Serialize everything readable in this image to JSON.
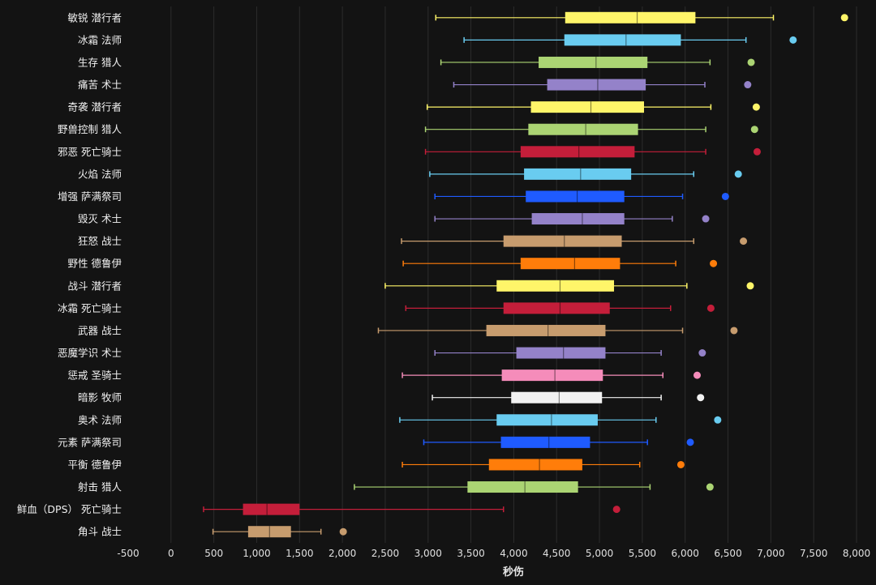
{
  "chart_data": {
    "type": "boxplot",
    "title": "",
    "xlabel": "秒伤",
    "ylabel": "",
    "xlim": [
      -500,
      8000
    ],
    "x_ticks": [
      -500,
      0,
      500,
      1000,
      1500,
      2000,
      2500,
      3000,
      3500,
      4000,
      4500,
      5000,
      5500,
      6000,
      6500,
      7000,
      7500,
      8000
    ],
    "x_tick_labels": [
      "-500",
      "0",
      "500",
      "1,000",
      "1,500",
      "2,000",
      "2,500",
      "3,000",
      "3,500",
      "4,000",
      "4,500",
      "5,000",
      "5,500",
      "6,000",
      "6,500",
      "7,000",
      "7,500",
      "8,000"
    ],
    "grid": true,
    "series": [
      {
        "name": "敏锐 潜行者",
        "color": "#fff569",
        "min": 3090,
        "q1": 4600,
        "median": 5440,
        "q3": 6120,
        "max": 7030,
        "outlier": 7860
      },
      {
        "name": "冰霜 法师",
        "color": "#69ccf0",
        "min": 3420,
        "q1": 4590,
        "median": 5310,
        "q3": 5950,
        "max": 6710,
        "outlier": 7260
      },
      {
        "name": "生存 猎人",
        "color": "#abd473",
        "min": 3150,
        "q1": 4290,
        "median": 4960,
        "q3": 5560,
        "max": 6290,
        "outlier": 6770
      },
      {
        "name": "痛苦 术士",
        "color": "#9482c9",
        "min": 3300,
        "q1": 4390,
        "median": 4980,
        "q3": 5540,
        "max": 6230,
        "outlier": 6730
      },
      {
        "name": "奇袭 潜行者",
        "color": "#fff569",
        "min": 2990,
        "q1": 4200,
        "median": 4900,
        "q3": 5520,
        "max": 6300,
        "outlier": 6830
      },
      {
        "name": "野兽控制 猎人",
        "color": "#abd473",
        "min": 2970,
        "q1": 4170,
        "median": 4840,
        "q3": 5450,
        "max": 6240,
        "outlier": 6810
      },
      {
        "name": "邪恶 死亡骑士",
        "color": "#c41e3a",
        "min": 2970,
        "q1": 4080,
        "median": 4760,
        "q3": 5410,
        "max": 6240,
        "outlier": 6840
      },
      {
        "name": "火焰 法师",
        "color": "#69ccf0",
        "min": 3020,
        "q1": 4120,
        "median": 4780,
        "q3": 5370,
        "max": 6100,
        "outlier": 6620
      },
      {
        "name": "增强 萨满祭司",
        "color": "#1f5bff",
        "min": 3080,
        "q1": 4140,
        "median": 4740,
        "q3": 5290,
        "max": 5970,
        "outlier": 6470
      },
      {
        "name": "毁灭 术士",
        "color": "#9482c9",
        "min": 3080,
        "q1": 4210,
        "median": 4800,
        "q3": 5290,
        "max": 5850,
        "outlier": 6240
      },
      {
        "name": "狂怒 战士",
        "color": "#c79c6e",
        "min": 2690,
        "q1": 3880,
        "median": 4590,
        "q3": 5260,
        "max": 6100,
        "outlier": 6680
      },
      {
        "name": "野性 德鲁伊",
        "color": "#ff7d0a",
        "min": 2710,
        "q1": 4080,
        "median": 4710,
        "q3": 5240,
        "max": 5890,
        "outlier": 6330
      },
      {
        "name": "战斗 潜行者",
        "color": "#fff569",
        "min": 2500,
        "q1": 3800,
        "median": 4540,
        "q3": 5170,
        "max": 6020,
        "outlier": 6760
      },
      {
        "name": "冰霜 死亡骑士",
        "color": "#c41e3a",
        "min": 2740,
        "q1": 3880,
        "median": 4540,
        "q3": 5120,
        "max": 5830,
        "outlier": 6300
      },
      {
        "name": "武器 战士",
        "color": "#c79c6e",
        "min": 2420,
        "q1": 3680,
        "median": 4400,
        "q3": 5070,
        "max": 5970,
        "outlier": 6570
      },
      {
        "name": "恶魔学识 术士",
        "color": "#9482c9",
        "min": 3080,
        "q1": 4030,
        "median": 4580,
        "q3": 5070,
        "max": 5720,
        "outlier": 6200
      },
      {
        "name": "惩戒 圣骑士",
        "color": "#f58cba",
        "min": 2700,
        "q1": 3860,
        "median": 4480,
        "q3": 5040,
        "max": 5740,
        "outlier": 6140
      },
      {
        "name": "暗影 牧师",
        "color": "#f2f2f2",
        "min": 3050,
        "q1": 3970,
        "median": 4530,
        "q3": 5030,
        "max": 5720,
        "outlier": 6180
      },
      {
        "name": "奥术 法师",
        "color": "#69ccf0",
        "min": 2670,
        "q1": 3800,
        "median": 4440,
        "q3": 4980,
        "max": 5660,
        "outlier": 6380
      },
      {
        "name": "元素 萨满祭司",
        "color": "#1f5bff",
        "min": 2950,
        "q1": 3850,
        "median": 4410,
        "q3": 4890,
        "max": 5560,
        "outlier": 6060
      },
      {
        "name": "平衡 德鲁伊",
        "color": "#ff7d0a",
        "min": 2700,
        "q1": 3710,
        "median": 4300,
        "q3": 4800,
        "max": 5470,
        "outlier": 5950
      },
      {
        "name": "射击 猎人",
        "color": "#abd473",
        "min": 2140,
        "q1": 3460,
        "median": 4130,
        "q3": 4750,
        "max": 5590,
        "outlier": 6290
      },
      {
        "name": "鲜血（DPS） 死亡骑士",
        "color": "#c41e3a",
        "min": 380,
        "q1": 840,
        "median": 1120,
        "q3": 1500,
        "max": 3880,
        "outlier": 5200
      },
      {
        "name": "角斗 战士",
        "color": "#c79c6e",
        "min": 490,
        "q1": 900,
        "median": 1150,
        "q3": 1400,
        "max": 1750,
        "outlier": 2010
      }
    ]
  }
}
